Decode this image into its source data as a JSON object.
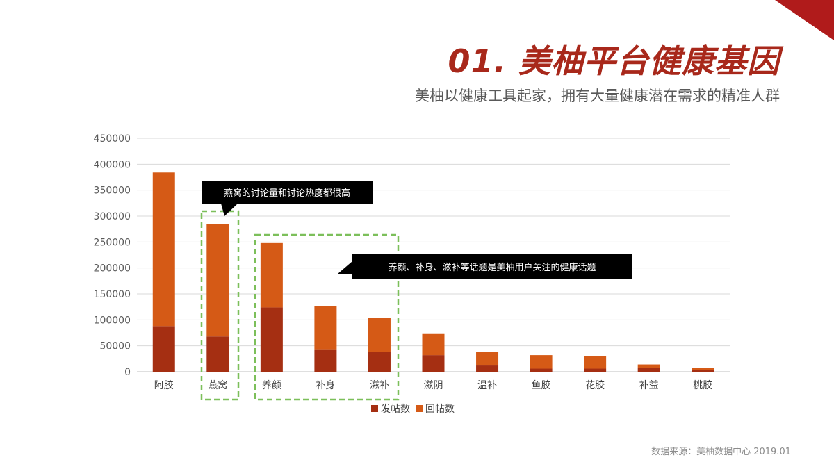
{
  "header": {
    "title": "01. 美柚平台健康基因",
    "subtitle": "美柚以健康工具起家，拥有大量健康潜在需求的精准人群"
  },
  "footer": {
    "source": "数据来源：美柚数据中心 2019.01"
  },
  "colors": {
    "accent": "#a8281b",
    "posts": "#a52f12",
    "replies": "#d55a16",
    "highlight": "#7cbf5a",
    "callout_bg": "#000000"
  },
  "callouts": [
    {
      "text": "燕窝的讨论量和讨论热度都很高"
    },
    {
      "text": "养颜、补身、滋补等话题是美柚用户关注的健康话题"
    }
  ],
  "chart_data": {
    "type": "bar",
    "stacked": true,
    "categories": [
      "阿胶",
      "燕窝",
      "养颜",
      "补身",
      "滋补",
      "滋阴",
      "温补",
      "鱼胶",
      "花胶",
      "补益",
      "桃胶"
    ],
    "series": [
      {
        "name": "发帖数",
        "values": [
          88000,
          68000,
          124000,
          42000,
          38000,
          32000,
          12000,
          6000,
          6000,
          7000,
          3000
        ]
      },
      {
        "name": "回帖数",
        "values": [
          296000,
          216000,
          124000,
          85000,
          66000,
          42000,
          26000,
          26000,
          24000,
          7000,
          5000
        ]
      }
    ],
    "ylim": [
      0,
      450000
    ],
    "yticks": [
      0,
      50000,
      100000,
      150000,
      200000,
      250000,
      300000,
      350000,
      400000,
      450000
    ],
    "grid": true,
    "legend": "bottom"
  }
}
